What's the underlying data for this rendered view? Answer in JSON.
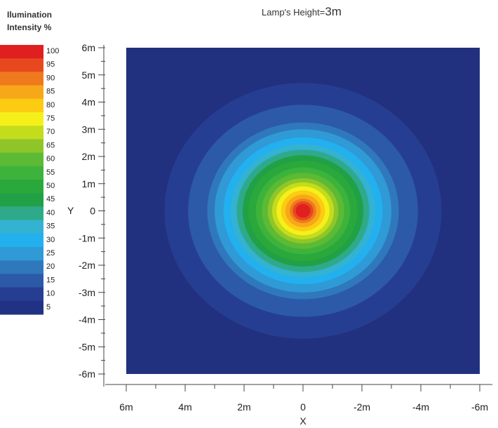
{
  "chart_data": {
    "type": "heatmap",
    "title_prefix": "Lamp's Height=",
    "title_value": "3m",
    "legend_title": [
      "Ilumination",
      "Intensity %"
    ],
    "xlabel": "X",
    "ylabel": "Y",
    "x_ticks": [
      "6m",
      "4m",
      "2m",
      "0",
      "-2m",
      "-4m",
      "-6m"
    ],
    "y_ticks": [
      "6m",
      "5m",
      "4m",
      "3m",
      "2m",
      "1m",
      "0",
      "-1m",
      "-2m",
      "-3m",
      "-4m",
      "-5m",
      "-6m"
    ],
    "xlim": [
      6,
      -6
    ],
    "ylim": [
      -6,
      6
    ],
    "legend_ticks": [
      100,
      95,
      90,
      85,
      80,
      75,
      70,
      65,
      60,
      55,
      50,
      45,
      40,
      35,
      30,
      25,
      20,
      15,
      10,
      5
    ],
    "legend_colors": [
      "#e02020",
      "#e8481e",
      "#ef7a1e",
      "#f7a818",
      "#fccc12",
      "#f6f01a",
      "#c3dc1c",
      "#8ec62a",
      "#5cba34",
      "#3db33c",
      "#2aa83c",
      "#21a046",
      "#2eaa8a",
      "#34b2d2",
      "#22b0ee",
      "#2f9ad6",
      "#3078bc",
      "#2c5aa8",
      "#263e92",
      "#213284"
    ],
    "background_color": "#22317f",
    "contours": [
      {
        "level": 10,
        "radius": 4.7,
        "color": "#263e92"
      },
      {
        "level": 15,
        "radius": 3.9,
        "color": "#2c5aa8"
      },
      {
        "level": 20,
        "radius": 3.25,
        "color": "#3078bc"
      },
      {
        "level": 25,
        "radius": 3.0,
        "color": "#2f9ad6"
      },
      {
        "level": 30,
        "radius": 2.7,
        "color": "#22b0ee"
      },
      {
        "level": 35,
        "radius": 2.45,
        "color": "#34b2d2"
      },
      {
        "level": 40,
        "radius": 2.25,
        "color": "#2eaa8a"
      },
      {
        "level": 45,
        "radius": 2.05,
        "color": "#21a046"
      },
      {
        "level": 50,
        "radius": 1.85,
        "color": "#2aa83c"
      },
      {
        "level": 55,
        "radius": 1.6,
        "color": "#3db33c"
      },
      {
        "level": 60,
        "radius": 1.4,
        "color": "#5cba34"
      },
      {
        "level": 65,
        "radius": 1.2,
        "color": "#8ec62a"
      },
      {
        "level": 70,
        "radius": 1.05,
        "color": "#c3dc1c"
      },
      {
        "level": 75,
        "radius": 0.9,
        "color": "#f6f01a"
      },
      {
        "level": 80,
        "radius": 0.75,
        "color": "#fccc12"
      },
      {
        "level": 85,
        "radius": 0.6,
        "color": "#f7a818"
      },
      {
        "level": 90,
        "radius": 0.45,
        "color": "#ef7a1e"
      },
      {
        "level": 95,
        "radius": 0.35,
        "color": "#e8481e"
      },
      {
        "level": 100,
        "radius": 0.25,
        "color": "#e02020"
      }
    ]
  }
}
